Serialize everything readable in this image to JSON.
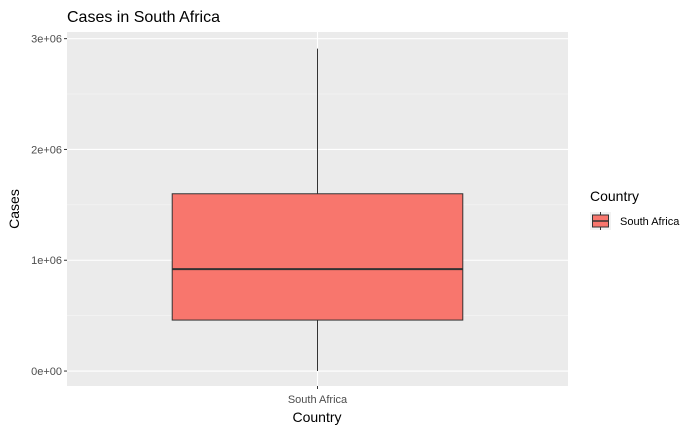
{
  "chart_data": {
    "type": "box",
    "title": "Cases in South Africa",
    "xlabel": "Country",
    "ylabel": "Cases",
    "categories": [
      "South Africa"
    ],
    "y_ticks": [
      {
        "value": 0,
        "label": "0e+00"
      },
      {
        "value": 1000000,
        "label": "1e+06"
      },
      {
        "value": 2000000,
        "label": "2e+06"
      },
      {
        "value": 3000000,
        "label": "3e+06"
      }
    ],
    "ylim": [
      -135000,
      3060000
    ],
    "series": [
      {
        "name": "South Africa",
        "category": "South Africa",
        "whisker_low": 0,
        "q1": 460000,
        "median": 920000,
        "q3": 1600000,
        "whisker_high": 2910000
      }
    ],
    "legend": {
      "title": "Country",
      "position": "right",
      "entries": [
        "South Africa"
      ]
    },
    "colors": {
      "fill": "#F8766D",
      "panel": "#EBEBEB",
      "grid_major": "#FFFFFF",
      "grid_minor": "#F5F5F5",
      "line": "#333333"
    },
    "grid": true
  }
}
